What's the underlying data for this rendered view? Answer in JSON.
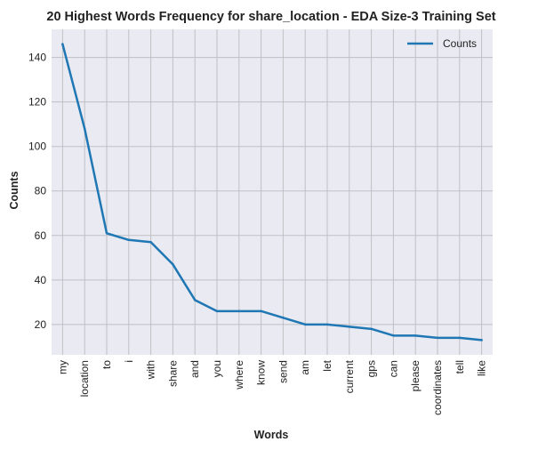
{
  "chart_data": {
    "type": "line",
    "title": "20 Highest Words Frequency for share_location - EDA Size-3 Training Set",
    "xlabel": "Words",
    "ylabel": "Counts",
    "categories": [
      "my",
      "location",
      "to",
      "i",
      "with",
      "share",
      "and",
      "you",
      "where",
      "know",
      "send",
      "am",
      "let",
      "current",
      "gps",
      "can",
      "please",
      "coordinates",
      "tell",
      "like"
    ],
    "series": [
      {
        "name": "Counts",
        "color": "#1f77b4",
        "values": [
          146,
          108,
          61,
          58,
          57,
          47,
          31,
          26,
          26,
          26,
          23,
          20,
          20,
          19,
          18,
          15,
          15,
          14,
          14,
          13
        ]
      }
    ],
    "yticks": [
      20,
      40,
      60,
      80,
      100,
      120,
      140
    ],
    "ylim": [
      6.35,
      152.65
    ],
    "grid": true,
    "legend": "top-right",
    "colors": {
      "plot_background": "#eaeaf2",
      "grid": "#bfbfc4"
    }
  }
}
